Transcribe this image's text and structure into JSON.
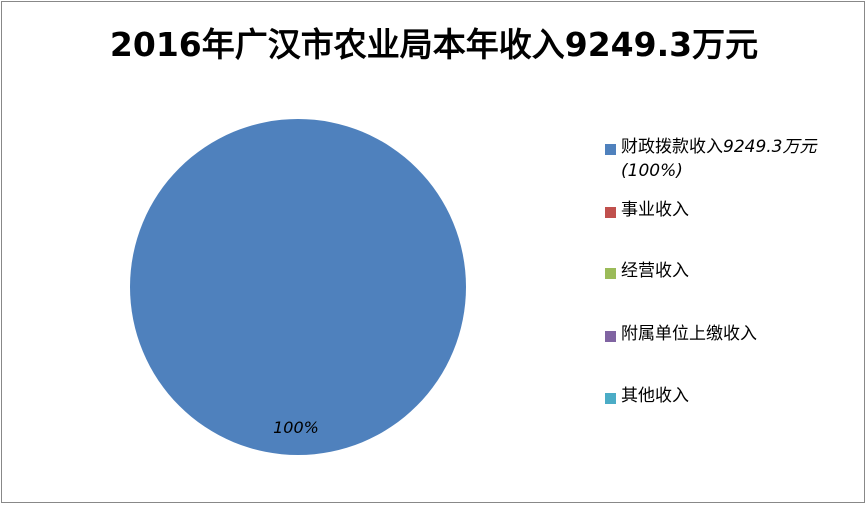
{
  "chart_data": {
    "type": "pie",
    "title": "2016年广汉市农业局本年收入9249.3万元",
    "unit": "万元",
    "slices": [
      {
        "name": "财政拨款收入",
        "value": 9249.3,
        "value_label": "9249.3万元",
        "percent_label": "(100%)",
        "data_label": "100%",
        "color": "#4F81BD"
      },
      {
        "name": "事业收入",
        "value": 0,
        "color": "#C0504D"
      },
      {
        "name": "经营收入",
        "value": 0,
        "color": "#9BBB59"
      },
      {
        "name": "附属单位上缴收入",
        "value": 0,
        "color": "#8064A2"
      },
      {
        "name": "其他收入",
        "value": 0,
        "color": "#4BACC6"
      }
    ],
    "legend_position": "right"
  }
}
